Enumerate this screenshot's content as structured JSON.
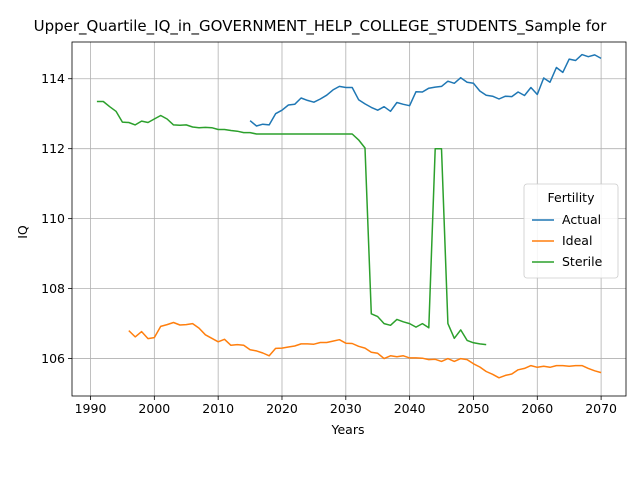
{
  "chart_data": {
    "type": "line",
    "title": "Upper_Quartile_IQ_in_GOVERNMENT_HELP_COLLEGE_STUDENTS_Sample for",
    "xlabel": "Years",
    "ylabel": "IQ",
    "xlim": [
      1987.1,
      2073.9
    ],
    "ylim": [
      104.93,
      115.05
    ],
    "xticks": [
      1990,
      2000,
      2010,
      2020,
      2030,
      2040,
      2050,
      2060,
      2070
    ],
    "yticks": [
      106,
      108,
      110,
      112,
      114
    ],
    "grid": true,
    "legend": {
      "title": "Fertility",
      "position": "center-right"
    },
    "series": [
      {
        "name": "Actual",
        "color": "#1f77b4",
        "x": [
          2015,
          2016,
          2017,
          2018,
          2019,
          2020,
          2021,
          2022,
          2023,
          2024,
          2025,
          2026,
          2027,
          2028,
          2029,
          2030,
          2031,
          2032,
          2033,
          2034,
          2035,
          2036,
          2037,
          2038,
          2039,
          2040,
          2041,
          2042,
          2043,
          2044,
          2045,
          2046,
          2047,
          2048,
          2049,
          2050,
          2051,
          2052,
          2053,
          2054,
          2055,
          2056,
          2057,
          2058,
          2059,
          2060,
          2061,
          2062,
          2063,
          2064,
          2065,
          2066,
          2067,
          2068,
          2069,
          2070
        ],
        "y": [
          112.8,
          112.65,
          112.7,
          112.68,
          113.0,
          113.1,
          113.25,
          113.27,
          113.45,
          113.38,
          113.33,
          113.42,
          113.53,
          113.68,
          113.78,
          113.75,
          113.75,
          113.4,
          113.28,
          113.18,
          113.1,
          113.2,
          113.07,
          113.32,
          113.27,
          113.23,
          113.63,
          113.62,
          113.73,
          113.76,
          113.78,
          113.93,
          113.87,
          114.03,
          113.9,
          113.87,
          113.65,
          113.53,
          113.5,
          113.42,
          113.5,
          113.49,
          113.62,
          113.52,
          113.75,
          113.55,
          114.02,
          113.9,
          114.32,
          114.18,
          114.56,
          114.52,
          114.69,
          114.63,
          114.68,
          114.58
        ]
      },
      {
        "name": "Ideal",
        "color": "#ff7f0e",
        "x": [
          1996,
          1997,
          1998,
          1999,
          2000,
          2001,
          2002,
          2003,
          2004,
          2005,
          2006,
          2007,
          2008,
          2009,
          2010,
          2011,
          2012,
          2013,
          2014,
          2015,
          2016,
          2017,
          2018,
          2019,
          2020,
          2021,
          2022,
          2023,
          2024,
          2025,
          2026,
          2027,
          2028,
          2029,
          2030,
          2031,
          2032,
          2033,
          2034,
          2035,
          2036,
          2037,
          2038,
          2039,
          2040,
          2041,
          2042,
          2043,
          2044,
          2045,
          2046,
          2047,
          2048,
          2049,
          2050,
          2051,
          2052,
          2053,
          2054,
          2055,
          2056,
          2057,
          2058,
          2059,
          2060,
          2061,
          2062,
          2063,
          2064,
          2065,
          2066,
          2067,
          2068,
          2069,
          2070
        ],
        "y": [
          106.8,
          106.62,
          106.77,
          106.57,
          106.6,
          106.92,
          106.97,
          107.03,
          106.96,
          106.97,
          107.0,
          106.87,
          106.68,
          106.58,
          106.48,
          106.55,
          106.38,
          106.4,
          106.38,
          106.25,
          106.22,
          106.16,
          106.08,
          106.29,
          106.3,
          106.33,
          106.36,
          106.42,
          106.42,
          106.41,
          106.46,
          106.46,
          106.5,
          106.54,
          106.44,
          106.43,
          106.35,
          106.3,
          106.18,
          106.15,
          106.0,
          106.08,
          106.05,
          106.08,
          106.02,
          106.02,
          106.01,
          105.97,
          105.98,
          105.92,
          106.0,
          105.92,
          106.0,
          105.97,
          105.85,
          105.76,
          105.63,
          105.55,
          105.45,
          105.52,
          105.56,
          105.68,
          105.72,
          105.8,
          105.75,
          105.78,
          105.75,
          105.8,
          105.8,
          105.78,
          105.8,
          105.8,
          105.72,
          105.65,
          105.6
        ]
      },
      {
        "name": "Sterile",
        "color": "#2ca02c",
        "x": [
          1991,
          1992,
          1993,
          1994,
          1995,
          1996,
          1997,
          1998,
          1999,
          2000,
          2001,
          2002,
          2003,
          2004,
          2005,
          2006,
          2007,
          2008,
          2009,
          2010,
          2011,
          2012,
          2013,
          2014,
          2015,
          2016,
          2017,
          2018,
          2019,
          2020,
          2021,
          2022,
          2023,
          2024,
          2025,
          2026,
          2027,
          2028,
          2029,
          2030,
          2031,
          2032,
          2033,
          2034,
          2035,
          2036,
          2037,
          2038,
          2039,
          2040,
          2041,
          2042,
          2043,
          2044,
          2045,
          2046,
          2047,
          2048,
          2049,
          2050,
          2051,
          2052
        ],
        "y": [
          113.35,
          113.35,
          113.2,
          113.07,
          112.76,
          112.75,
          112.68,
          112.79,
          112.75,
          112.85,
          112.95,
          112.85,
          112.68,
          112.67,
          112.68,
          112.62,
          112.6,
          112.61,
          112.6,
          112.55,
          112.55,
          112.52,
          112.5,
          112.46,
          112.46,
          112.42,
          112.42,
          112.42,
          112.42,
          112.42,
          112.42,
          112.42,
          112.42,
          112.42,
          112.42,
          112.42,
          112.42,
          112.42,
          112.42,
          112.42,
          112.42,
          112.25,
          112.02,
          107.28,
          107.2,
          107.0,
          106.95,
          107.12,
          107.05,
          107.0,
          106.9,
          107.0,
          106.88,
          112.0,
          112.0,
          107.0,
          106.58,
          106.82,
          106.52,
          106.45,
          106.42,
          106.4
        ]
      }
    ]
  }
}
